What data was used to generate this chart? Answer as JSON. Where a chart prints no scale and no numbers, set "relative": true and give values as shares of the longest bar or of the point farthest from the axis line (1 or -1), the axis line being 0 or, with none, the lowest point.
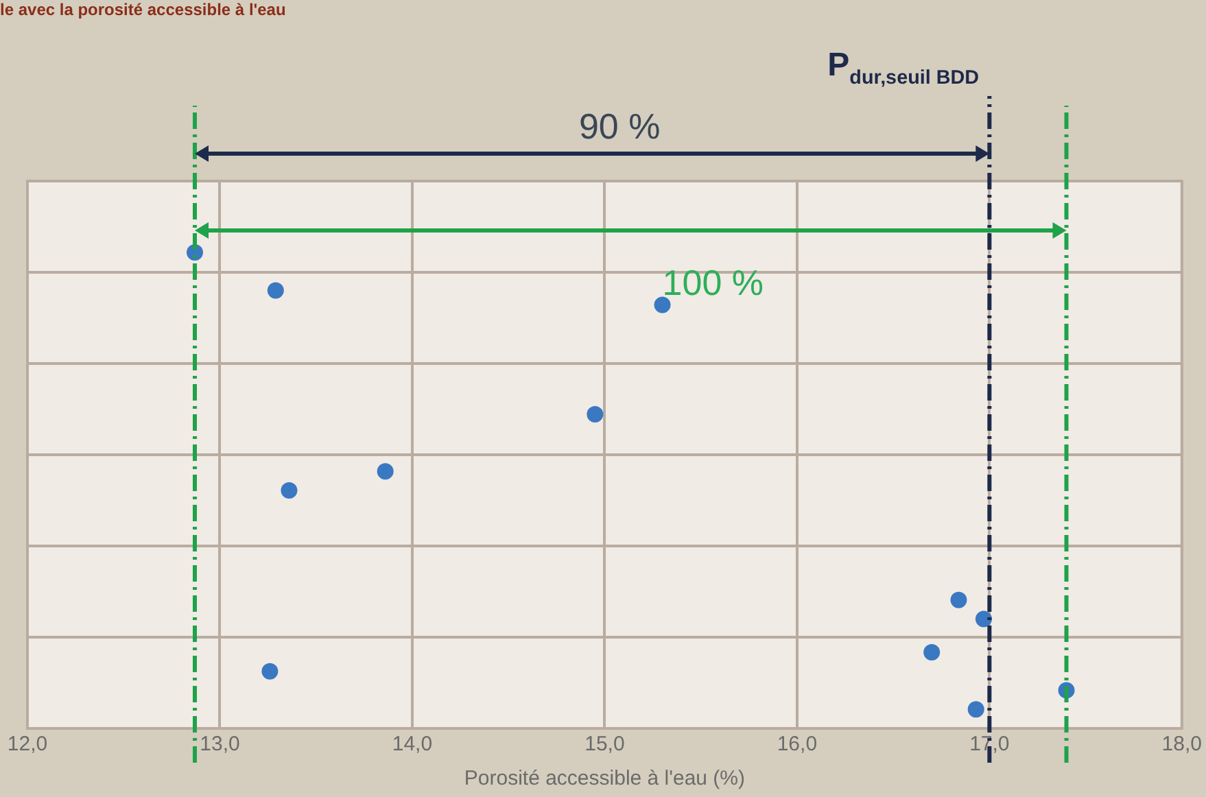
{
  "chart_data": {
    "type": "scatter",
    "title": "le avec la porosité accessible à l'eau",
    "xlabel": "Porosité accessible à l'eau (%)",
    "x": [
      12.87,
      13.29,
      15.3,
      14.95,
      13.86,
      13.36,
      13.26,
      16.84,
      16.97,
      16.7,
      16.93,
      17.4
    ],
    "series": [
      {
        "color": "#3a78c2",
        "values": [
          1,
          0.92,
          0.89,
          0.66,
          0.54,
          0.5,
          0.12,
          0.27,
          0.23,
          0.16,
          0.04,
          0.08
        ]
      }
    ],
    "relative": true,
    "marker": "circle",
    "grid": true,
    "xlim": [
      12,
      18
    ],
    "xticks": [
      {
        "value": 12,
        "label": "12,0"
      },
      {
        "value": 13,
        "label": "13,0"
      },
      {
        "value": 14,
        "label": "14,0"
      },
      {
        "value": 15,
        "label": "15,0"
      },
      {
        "value": 16,
        "label": "16,0"
      },
      {
        "value": 17,
        "label": "17,0"
      },
      {
        "value": 18,
        "label": "18,0"
      }
    ],
    "ref_lines": [
      {
        "axis": "x",
        "value": 12.87,
        "label": null,
        "color": "#1fa24a",
        "line_style": "dashed"
      },
      {
        "axis": "x",
        "value": 17.0,
        "label": "P$_{dur,seuil BDD}$",
        "color": "#1e2a4a",
        "line_style": "dashed"
      },
      {
        "axis": "x",
        "value": 17.4,
        "label": null,
        "color": "#1fa24a",
        "line_style": "dashed"
      }
    ],
    "annotations": [
      "90 %",
      "100 %"
    ]
  }
}
